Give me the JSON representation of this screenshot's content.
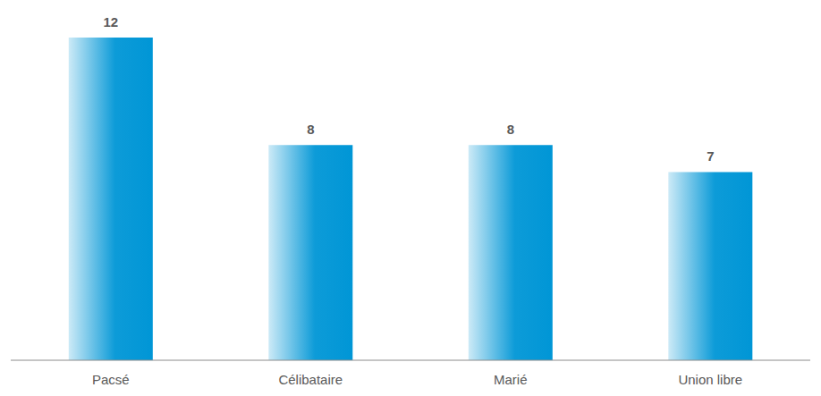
{
  "chart_data": {
    "type": "bar",
    "categories": [
      "Pacsé",
      "Célibataire",
      "Marié",
      "Union libre"
    ],
    "values": [
      12,
      8,
      8,
      7
    ],
    "color": "#0096d6",
    "data_labels": true,
    "tick_labels": "x",
    "grid": false
  }
}
